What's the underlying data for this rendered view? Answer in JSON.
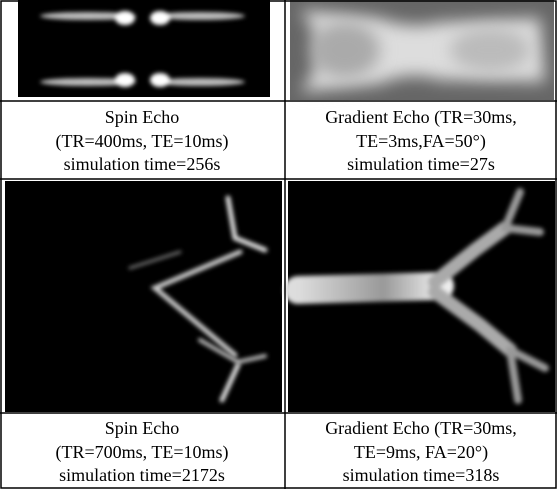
{
  "panels": [
    {
      "caption": [
        "Spin Echo",
        "(TR=400ms, TE=10ms)",
        "simulation time=256s"
      ]
    },
    {
      "caption": [
        "Gradient Echo (TR=30ms,",
        "TE=3ms,FA=50°)",
        "simulation time=27s"
      ]
    },
    {
      "caption": [
        "Spin Echo",
        "(TR=700ms, TE=10ms)",
        "simulation time=2172s"
      ]
    },
    {
      "caption": [
        "Gradient Echo (TR=30ms,",
        "TE=9ms, FA=20°)",
        "simulation time=318s"
      ]
    }
  ]
}
